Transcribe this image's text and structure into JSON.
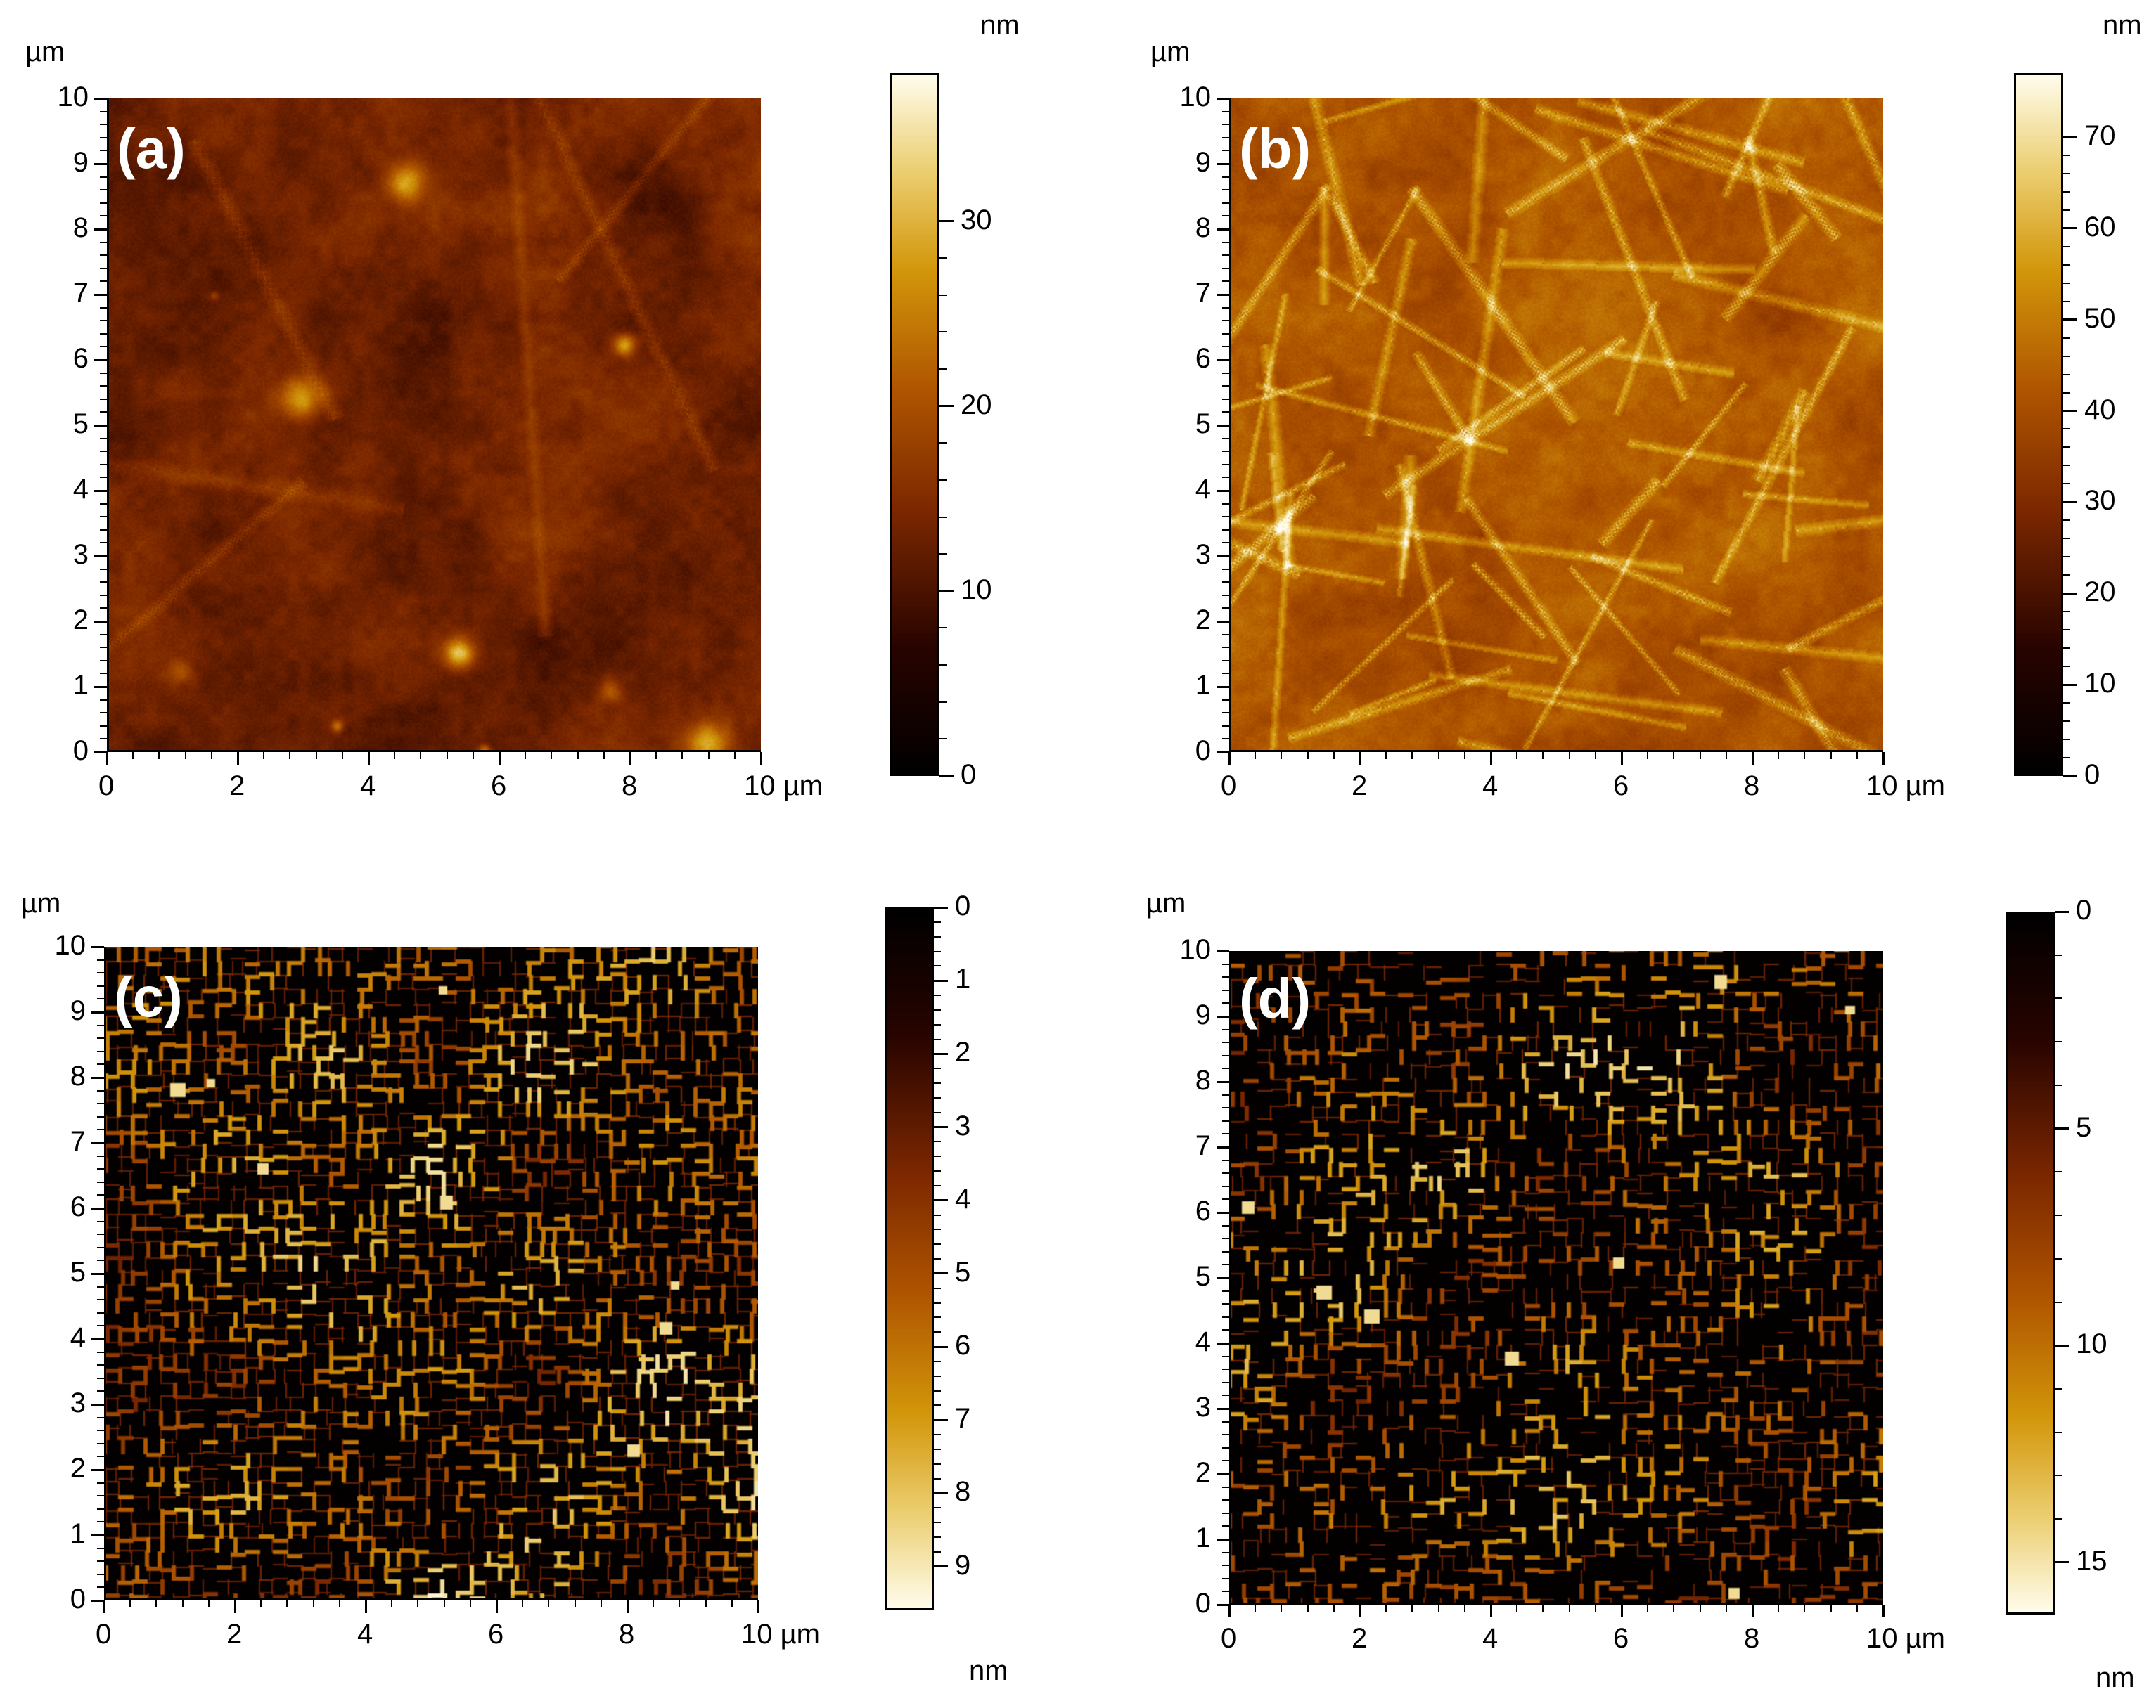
{
  "panels": [
    {
      "id": "a",
      "label": "(a)",
      "y_unit": "µm",
      "x_unit_suffix": " µm",
      "x_ticks": [
        "0",
        "2",
        "4",
        "6",
        "8",
        "10"
      ],
      "y_ticks": [
        "0",
        "1",
        "2",
        "3",
        "4",
        "5",
        "6",
        "7",
        "8",
        "9",
        "10"
      ],
      "colorbar": {
        "unit": "nm",
        "unit_position": "top",
        "min": 0,
        "max": 38,
        "ticks": [
          "0",
          "10",
          "20",
          "30"
        ],
        "tick_values": [
          0,
          10,
          20,
          30
        ],
        "orientation": "bottom-to-top",
        "colormap": "afm-gold"
      },
      "image": {
        "style": "smooth-surface",
        "seed": 11,
        "base_level": 0.35
      }
    },
    {
      "id": "b",
      "label": "(b)",
      "y_unit": "µm",
      "x_unit_suffix": " µm",
      "x_ticks": [
        "0",
        "2",
        "4",
        "6",
        "8",
        "10"
      ],
      "y_ticks": [
        "0",
        "1",
        "2",
        "3",
        "4",
        "5",
        "6",
        "7",
        "8",
        "9",
        "10"
      ],
      "colorbar": {
        "unit": "nm",
        "unit_position": "top",
        "min": 0,
        "max": 77,
        "ticks": [
          "0",
          "10",
          "20",
          "30",
          "40",
          "50",
          "60",
          "70"
        ],
        "tick_values": [
          0,
          10,
          20,
          30,
          40,
          50,
          60,
          70
        ],
        "orientation": "bottom-to-top",
        "colormap": "afm-gold"
      },
      "image": {
        "style": "wrinkled-surface",
        "seed": 23,
        "base_level": 0.55
      }
    },
    {
      "id": "c",
      "label": "(c)",
      "y_unit": "µm",
      "x_unit_suffix": " µm",
      "x_ticks": [
        "0",
        "2",
        "4",
        "6",
        "8",
        "10"
      ],
      "y_ticks": [
        "0",
        "1",
        "2",
        "3",
        "4",
        "5",
        "6",
        "7",
        "8",
        "9",
        "10"
      ],
      "colorbar": {
        "unit": "nm",
        "unit_position": "bottom",
        "min": 0,
        "max": 9.6,
        "ticks": [
          "0",
          "1",
          "2",
          "3",
          "4",
          "5",
          "6",
          "7",
          "8",
          "9"
        ],
        "tick_values": [
          0,
          1,
          2,
          3,
          4,
          5,
          6,
          7,
          8,
          9
        ],
        "orientation": "top-to-bottom",
        "colormap": "afm-gold"
      },
      "image": {
        "style": "dense-network",
        "seed": 37,
        "density": 1.0
      }
    },
    {
      "id": "d",
      "label": "(d)",
      "y_unit": "µm",
      "x_unit_suffix": " µm",
      "x_ticks": [
        "0",
        "2",
        "4",
        "6",
        "8",
        "10"
      ],
      "y_ticks": [
        "0",
        "1",
        "2",
        "3",
        "4",
        "5",
        "6",
        "7",
        "8",
        "9",
        "10"
      ],
      "colorbar": {
        "unit": "nm",
        "unit_position": "bottom",
        "min": 0,
        "max": 16.2,
        "ticks": [
          "0",
          "5",
          "10",
          "15"
        ],
        "tick_values": [
          0,
          5,
          10,
          15
        ],
        "orientation": "top-to-bottom",
        "colormap": "afm-gold"
      },
      "image": {
        "style": "sparse-network",
        "seed": 53,
        "density": 0.6
      }
    }
  ],
  "colors": {
    "afm_dark": "#000000",
    "afm_mid": "#8a2d00",
    "afm_gold": "#c88a00",
    "afm_light": "#fffbe6"
  }
}
